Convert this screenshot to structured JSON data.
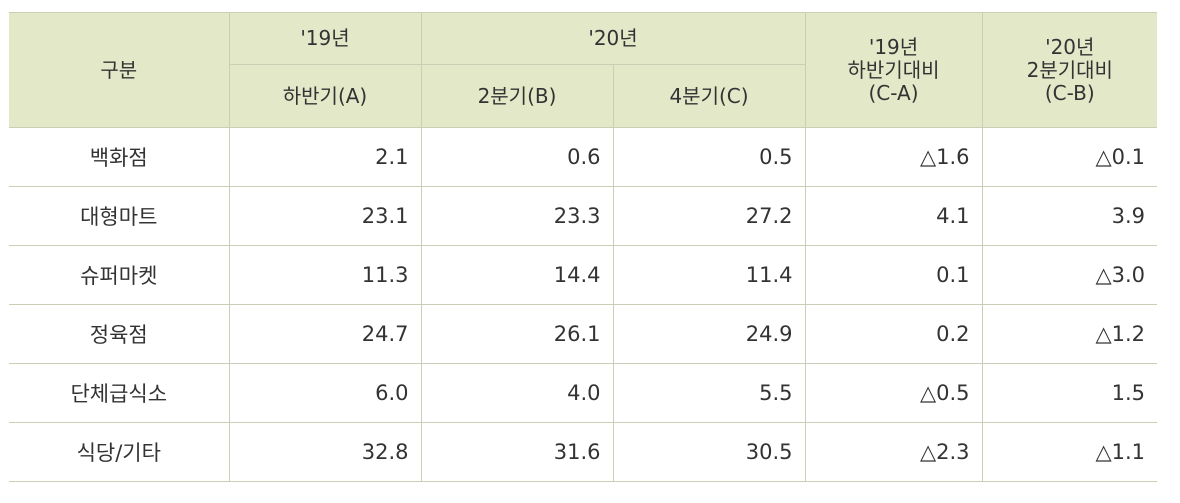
{
  "header": {
    "category": "구분",
    "y19": "'19년",
    "y20": "'20년",
    "diff19": "'19년\n하반기대비\n(C-A)",
    "diff20": "'20년\n2분기대비\n(C-B)",
    "h2_2019": "하반기(A)",
    "q2_2020": "2분기(B)",
    "q4_2020": "4분기(C)"
  },
  "rows": [
    {
      "category": "백화점",
      "a": "2.1",
      "b": "0.6",
      "c": "0.5",
      "ca": "△1.6",
      "cb": "△0.1"
    },
    {
      "category": "대형마트",
      "a": "23.1",
      "b": "23.3",
      "c": "27.2",
      "ca": "4.1",
      "cb": "3.9"
    },
    {
      "category": "슈퍼마켓",
      "a": "11.3",
      "b": "14.4",
      "c": "11.4",
      "ca": "0.1",
      "cb": "△3.0"
    },
    {
      "category": "정육점",
      "a": "24.7",
      "b": "26.1",
      "c": "24.9",
      "ca": "0.2",
      "cb": "△1.2"
    },
    {
      "category": "단체급식소",
      "a": "6.0",
      "b": "4.0",
      "c": "5.5",
      "ca": "△0.5",
      "cb": "1.5"
    },
    {
      "category": "식당/기타",
      "a": "32.8",
      "b": "31.6",
      "c": "30.5",
      "ca": "△2.3",
      "cb": "△1.1"
    }
  ]
}
